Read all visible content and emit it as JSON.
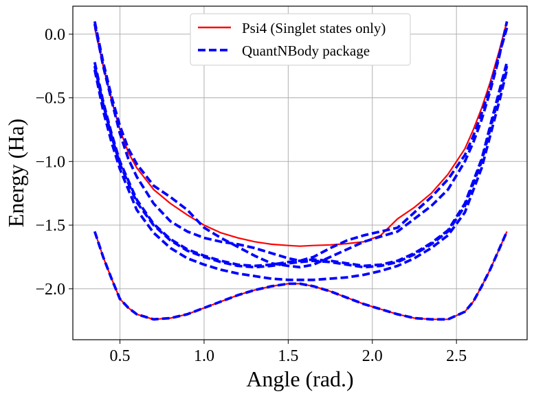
{
  "chart_data": {
    "type": "line",
    "xlabel": "Angle (rad.)",
    "ylabel": "Energy (Ha)",
    "xlim": [
      0.22,
      2.92
    ],
    "ylim": [
      -2.4,
      0.22
    ],
    "xticks": [
      0.5,
      1.0,
      1.5,
      2.0,
      2.5
    ],
    "xtick_labels": [
      "0.5",
      "1.0",
      "1.5",
      "2.0",
      "2.5"
    ],
    "yticks": [
      0.0,
      -0.5,
      -1.0,
      -1.5,
      -2.0
    ],
    "ytick_labels": [
      "0.0",
      "−0.5",
      "−1.0",
      "−1.5",
      "−2.0"
    ],
    "grid": true,
    "legend_position": "top-center",
    "colors": {
      "psi4": "#ff0000",
      "quantnbody": "#0000ff"
    },
    "legend": [
      {
        "label": "Psi4 (Singlet states only)",
        "style": "solid",
        "color": "#ff0000"
      },
      {
        "label": "QuantNBody package",
        "style": "dashed",
        "color": "#0000ff"
      }
    ],
    "series": [
      {
        "group": "Psi4 (Singlet states only)",
        "style": "solid",
        "color": "#ff0000",
        "x": [
          0.35,
          0.4,
          0.45,
          0.5,
          0.55,
          0.6,
          0.7,
          0.8,
          0.9,
          1.0,
          1.1,
          1.2,
          1.3,
          1.4,
          1.5,
          1.57,
          1.65,
          1.75,
          1.85,
          1.95,
          2.05,
          2.15,
          2.25,
          2.35,
          2.45,
          2.55,
          2.6,
          2.65,
          2.7,
          2.75,
          2.8
        ],
        "y": [
          -1.55,
          -1.75,
          -1.92,
          -2.08,
          -2.15,
          -2.2,
          -2.24,
          -2.23,
          -2.2,
          -2.15,
          -2.1,
          -2.05,
          -2.01,
          -1.98,
          -1.96,
          -1.96,
          -1.98,
          -2.02,
          -2.07,
          -2.12,
          -2.16,
          -2.2,
          -2.23,
          -2.24,
          -2.24,
          -2.18,
          -2.1,
          -1.98,
          -1.85,
          -1.7,
          -1.55
        ]
      },
      {
        "group": "QuantNBody package",
        "style": "dashed",
        "color": "#0000ff",
        "x": [
          0.35,
          0.4,
          0.45,
          0.5,
          0.55,
          0.6,
          0.7,
          0.8,
          0.9,
          1.0,
          1.1,
          1.2,
          1.3,
          1.4,
          1.5,
          1.57,
          1.65,
          1.75,
          1.85,
          1.95,
          2.05,
          2.15,
          2.25,
          2.35,
          2.45,
          2.55,
          2.6,
          2.65,
          2.7,
          2.75,
          2.8
        ],
        "y": [
          -1.55,
          -1.75,
          -1.92,
          -2.08,
          -2.15,
          -2.2,
          -2.24,
          -2.23,
          -2.2,
          -2.15,
          -2.1,
          -2.05,
          -2.01,
          -1.98,
          -1.96,
          -1.96,
          -1.98,
          -2.02,
          -2.07,
          -2.12,
          -2.16,
          -2.2,
          -2.23,
          -2.24,
          -2.24,
          -2.18,
          -2.1,
          -1.98,
          -1.85,
          -1.7,
          -1.55
        ]
      },
      {
        "group": "Psi4 (Singlet states only)",
        "style": "solid",
        "color": "#ff0000",
        "x": [
          0.35,
          0.4,
          0.45,
          0.5,
          0.55,
          0.6,
          0.7,
          0.8,
          0.9,
          1.0,
          1.1,
          1.2,
          1.3,
          1.4,
          1.5,
          1.57,
          1.65,
          1.75,
          1.85,
          1.95,
          2.05,
          2.15,
          2.25,
          2.35,
          2.45,
          2.55,
          2.6,
          2.65,
          2.7,
          2.75,
          2.8
        ],
        "y": [
          0.05,
          -0.25,
          -0.52,
          -0.75,
          -0.93,
          -1.05,
          -1.22,
          -1.33,
          -1.42,
          -1.5,
          -1.56,
          -1.6,
          -1.63,
          -1.65,
          -1.66,
          -1.665,
          -1.66,
          -1.655,
          -1.645,
          -1.63,
          -1.58,
          -1.45,
          -1.36,
          -1.25,
          -1.1,
          -0.9,
          -0.75,
          -0.58,
          -0.38,
          -0.15,
          0.1
        ]
      },
      {
        "group": "QuantNBody package",
        "style": "dashed",
        "color": "#0000ff",
        "x": [
          0.35,
          0.4,
          0.45,
          0.5,
          0.55,
          0.6,
          0.7,
          0.8,
          0.9,
          1.0,
          1.1,
          1.2,
          1.3,
          1.4,
          1.5,
          1.57,
          1.65,
          1.75,
          1.85,
          1.95,
          2.05,
          2.15,
          2.25,
          2.35,
          2.45,
          2.55,
          2.6,
          2.65,
          2.7,
          2.75,
          2.8
        ],
        "y": [
          0.1,
          -0.22,
          -0.49,
          -0.72,
          -0.9,
          -1.02,
          -1.19,
          -1.28,
          -1.38,
          -1.52,
          -1.6,
          -1.67,
          -1.74,
          -1.8,
          -1.82,
          -1.83,
          -1.81,
          -1.75,
          -1.69,
          -1.63,
          -1.59,
          -1.55,
          -1.45,
          -1.35,
          -1.22,
          -1.0,
          -0.85,
          -0.67,
          -0.45,
          -0.2,
          0.1
        ]
      },
      {
        "group": "QuantNBody package",
        "style": "dashed",
        "color": "#0000ff",
        "x": [
          0.35,
          0.4,
          0.45,
          0.5,
          0.55,
          0.6,
          0.7,
          0.8,
          0.9,
          1.0,
          1.1,
          1.2,
          1.3,
          1.4,
          1.5,
          1.57,
          1.65,
          1.75,
          1.85,
          1.95,
          2.05,
          2.15,
          2.25,
          2.35,
          2.45,
          2.55,
          2.6,
          2.65,
          2.7,
          2.75,
          2.8
        ],
        "y": [
          0.08,
          -0.25,
          -0.52,
          -0.78,
          -0.98,
          -1.12,
          -1.33,
          -1.47,
          -1.55,
          -1.6,
          -1.63,
          -1.65,
          -1.68,
          -1.72,
          -1.76,
          -1.78,
          -1.75,
          -1.68,
          -1.62,
          -1.58,
          -1.55,
          -1.52,
          -1.4,
          -1.28,
          -1.14,
          -0.95,
          -0.8,
          -0.62,
          -0.42,
          -0.18,
          0.05
        ]
      },
      {
        "group": "QuantNBody package",
        "style": "dashed",
        "color": "#0000ff",
        "x": [
          0.35,
          0.4,
          0.45,
          0.5,
          0.6,
          0.7,
          0.8,
          0.9,
          1.0,
          1.1,
          1.2,
          1.3,
          1.4,
          1.5,
          1.57,
          1.65,
          1.75,
          1.85,
          1.95,
          2.05,
          2.15,
          2.25,
          2.35,
          2.45,
          2.55,
          2.65,
          2.72,
          2.76,
          2.8
        ],
        "y": [
          -0.25,
          -0.55,
          -0.8,
          -1.02,
          -1.32,
          -1.5,
          -1.62,
          -1.7,
          -1.75,
          -1.79,
          -1.82,
          -1.83,
          -1.82,
          -1.8,
          -1.79,
          -1.78,
          -1.79,
          -1.81,
          -1.83,
          -1.82,
          -1.79,
          -1.73,
          -1.65,
          -1.55,
          -1.35,
          -1.0,
          -0.65,
          -0.45,
          -0.25
        ]
      },
      {
        "group": "QuantNBody package",
        "style": "dashed",
        "color": "#0000ff",
        "x": [
          0.35,
          0.4,
          0.45,
          0.5,
          0.6,
          0.7,
          0.8,
          0.9,
          1.0,
          1.1,
          1.2,
          1.3,
          1.4,
          1.5,
          1.57,
          1.65,
          1.75,
          1.85,
          1.95,
          2.05,
          2.15,
          2.25,
          2.35,
          2.45,
          2.55,
          2.65,
          2.72,
          2.76,
          2.8
        ],
        "y": [
          -0.28,
          -0.6,
          -0.85,
          -1.06,
          -1.38,
          -1.56,
          -1.68,
          -1.76,
          -1.81,
          -1.85,
          -1.88,
          -1.9,
          -1.92,
          -1.93,
          -1.93,
          -1.93,
          -1.92,
          -1.91,
          -1.89,
          -1.86,
          -1.82,
          -1.76,
          -1.68,
          -1.58,
          -1.4,
          -1.05,
          -0.7,
          -0.5,
          -0.28
        ]
      },
      {
        "group": "QuantNBody package",
        "style": "dashed",
        "color": "#0000ff",
        "x": [
          0.35,
          0.4,
          0.45,
          0.5,
          0.6,
          0.7,
          0.8,
          0.9,
          1.0,
          1.1,
          1.2,
          1.3,
          1.4,
          1.5,
          1.57,
          1.65,
          1.75,
          1.85,
          1.95,
          2.05,
          2.15,
          2.25,
          2.35,
          2.45,
          2.55,
          2.65,
          2.72,
          2.76,
          2.8
        ],
        "y": [
          -0.22,
          -0.53,
          -0.78,
          -1.0,
          -1.3,
          -1.49,
          -1.61,
          -1.69,
          -1.74,
          -1.78,
          -1.81,
          -1.82,
          -1.81,
          -1.79,
          -1.78,
          -1.77,
          -1.78,
          -1.8,
          -1.82,
          -1.81,
          -1.78,
          -1.72,
          -1.64,
          -1.54,
          -1.33,
          -0.98,
          -0.62,
          -0.42,
          -0.22
        ]
      }
    ]
  }
}
